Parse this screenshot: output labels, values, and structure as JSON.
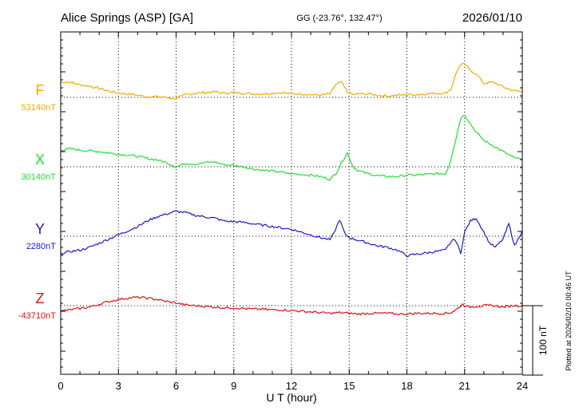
{
  "header": {
    "station": "Alice Springs (ASP)  [GA]",
    "coords": "GG (-23.76°, 132.47°)",
    "date": "2026/01/10"
  },
  "footer": {
    "plotted": "Plotted at 2026/02/10 00:46 UT"
  },
  "colors": {
    "F": "#f5a800",
    "X": "#22dd33",
    "Y": "#1a1acc",
    "Z": "#dd1111",
    "axis": "#000000",
    "grid": "#000000"
  },
  "chart_data": {
    "type": "line",
    "title": "Alice Springs (ASP)  [GA]",
    "xlabel": "U T (hour)",
    "ylabel": "",
    "xlim": [
      0,
      24
    ],
    "xticks": [
      0,
      3,
      6,
      9,
      12,
      15,
      18,
      21,
      24
    ],
    "grid": true,
    "scale": {
      "value": 100,
      "label": "100 nT"
    },
    "series": [
      {
        "name": "F",
        "baseline_label": "53140nT",
        "baseline_nT": 53140,
        "x": [
          0,
          0.5,
          1,
          1.5,
          2,
          2.5,
          3,
          3.5,
          4,
          4.5,
          5,
          5.5,
          6,
          6.5,
          7,
          7.5,
          8,
          8.5,
          9,
          9.5,
          10,
          10.5,
          11,
          11.5,
          12,
          12.5,
          13,
          13.5,
          14,
          14.3,
          14.6,
          14.9,
          15.2,
          15.5,
          16,
          16.5,
          17,
          17.5,
          18,
          18.5,
          19,
          19.5,
          20,
          20.3,
          20.5,
          20.7,
          20.9,
          21.1,
          21.3,
          21.6,
          22,
          22.5,
          23,
          23.5,
          24
        ],
        "offsets_nT": [
          22,
          22,
          18,
          16,
          13,
          9,
          6,
          5,
          3,
          1,
          1,
          0,
          -2,
          4,
          6,
          7,
          8,
          6,
          7,
          6,
          5,
          5,
          6,
          7,
          5,
          5,
          4,
          3,
          5,
          18,
          22,
          8,
          4,
          5,
          5,
          3,
          2,
          3,
          4,
          4,
          5,
          6,
          6,
          12,
          30,
          44,
          48,
          46,
          38,
          34,
          20,
          22,
          15,
          10,
          8
        ]
      },
      {
        "name": "X",
        "baseline_label": "30140nT",
        "baseline_nT": 30140,
        "x": [
          0,
          0.5,
          1,
          1.5,
          2,
          2.5,
          3,
          3.5,
          4,
          4.5,
          5,
          5.5,
          6,
          6.5,
          7,
          7.5,
          8,
          8.5,
          9,
          9.5,
          10,
          10.5,
          11,
          11.5,
          12,
          12.5,
          13,
          13.5,
          14,
          14.3,
          14.6,
          14.9,
          15.2,
          15.5,
          16,
          16.5,
          17,
          17.5,
          18,
          18.5,
          19,
          19.5,
          20,
          20.2,
          20.5,
          20.8,
          21,
          21.3,
          21.6,
          22,
          22.5,
          23,
          23.5,
          24
        ],
        "offsets_nT": [
          24,
          26,
          24,
          23,
          22,
          20,
          18,
          17,
          15,
          12,
          10,
          6,
          0,
          5,
          4,
          6,
          7,
          3,
          2,
          0,
          -3,
          -5,
          -6,
          -8,
          -10,
          -11,
          -12,
          -14,
          -18,
          -10,
          6,
          20,
          0,
          -6,
          -10,
          -13,
          -14,
          -14,
          -12,
          -12,
          -11,
          -10,
          -10,
          2,
          35,
          70,
          75,
          62,
          50,
          38,
          30,
          22,
          14,
          10
        ]
      },
      {
        "name": "Y",
        "baseline_label": "2280nT",
        "baseline_nT": 2280,
        "x": [
          0,
          0.5,
          1,
          1.5,
          2,
          2.5,
          3,
          3.5,
          4,
          4.5,
          5,
          5.5,
          6,
          6.5,
          7,
          7.5,
          8,
          8.5,
          9,
          9.5,
          10,
          10.5,
          11,
          11.5,
          12,
          12.5,
          13,
          13.5,
          14,
          14.2,
          14.5,
          14.8,
          15.1,
          15.5,
          16,
          16.5,
          17,
          17.5,
          18,
          18.5,
          19,
          19.5,
          20,
          20.3,
          20.5,
          20.8,
          21,
          21.3,
          21.6,
          22,
          22.3,
          22.6,
          23,
          23.3,
          23.6,
          24
        ],
        "offsets_nT": [
          -25,
          -22,
          -20,
          -16,
          -10,
          -4,
          2,
          8,
          14,
          22,
          28,
          32,
          36,
          34,
          30,
          28,
          26,
          22,
          21,
          20,
          18,
          16,
          14,
          12,
          10,
          6,
          2,
          -2,
          -5,
          4,
          24,
          2,
          -3,
          -6,
          -10,
          -14,
          -16,
          -20,
          -28,
          -26,
          -24,
          -22,
          -20,
          -8,
          -4,
          -24,
          6,
          22,
          26,
          6,
          -10,
          -16,
          -4,
          18,
          -14,
          8
        ]
      },
      {
        "name": "Z",
        "baseline_label": "-43710nT",
        "baseline_nT": -43710,
        "x": [
          0,
          0.5,
          1,
          1.5,
          2,
          2.5,
          3,
          3.5,
          4,
          4.5,
          5,
          5.5,
          6,
          6.5,
          7,
          7.5,
          8,
          8.5,
          9,
          9.5,
          10,
          10.5,
          11,
          11.5,
          12,
          12.5,
          13,
          13.5,
          14,
          14.5,
          15,
          15.5,
          16,
          16.5,
          17,
          17.5,
          18,
          18.5,
          19,
          19.5,
          20,
          20.3,
          20.6,
          20.9,
          21.2,
          21.6,
          22,
          22.5,
          23,
          23.5,
          24
        ],
        "offsets_nT": [
          -8,
          -6,
          -4,
          -2,
          2,
          6,
          9,
          11,
          12,
          11,
          9,
          6,
          4,
          1,
          0,
          -1,
          -2,
          -3,
          -3,
          -4,
          -5,
          -5,
          -6,
          -6,
          -7,
          -8,
          -9,
          -10,
          -11,
          -10,
          -11,
          -12,
          -11,
          -11,
          -11,
          -12,
          -12,
          -11,
          -11,
          -11,
          -11,
          -10,
          -5,
          2,
          -2,
          -1,
          0,
          0,
          -2,
          0,
          0
        ]
      }
    ]
  }
}
